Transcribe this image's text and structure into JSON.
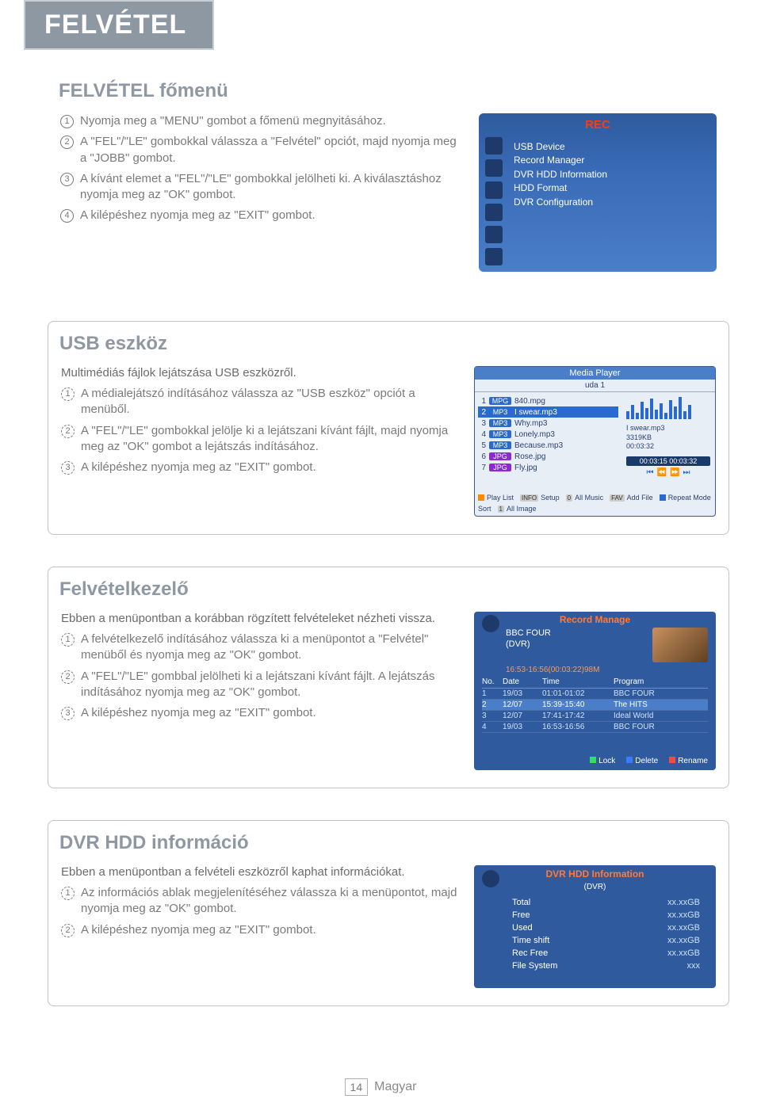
{
  "page_title": "FELVÉTEL",
  "section1": {
    "title": "FELVÉTEL főmenü",
    "steps": [
      "Nyomja meg a \"MENU\" gombot a főmenü megnyitásához.",
      "A \"FEL\"/\"LE\" gombokkal válassza a \"Felvétel\" opciót, majd nyomja meg a \"JOBB\" gombot.",
      "A kívánt elemet a \"FEL\"/\"LE\" gombokkal jelölheti ki. A kiválasztáshoz nyomja meg az \"OK\" gombot.",
      "A kilépéshez nyomja meg az \"EXIT\" gombot."
    ]
  },
  "rec_panel": {
    "title": "REC",
    "title_color": "#ff3a0c",
    "bg_gradient_top": "#2f5b9e",
    "bg_gradient_bottom": "#4a7ec8",
    "items": [
      "USB Device",
      "Record Manager",
      "DVR HDD Information",
      "HDD Format",
      "DVR Configuration"
    ]
  },
  "section2": {
    "title": "USB eszköz",
    "intro": "Multimédiás fájlok lejátszása USB eszközről.",
    "steps": [
      "A médialejátszó indításához válassza az \"USB eszköz\" opciót a menüből.",
      "A \"FEL\"/\"LE\" gombokkal jelölje ki a lejátszani kívánt fájlt, majd nyomja meg az \"OK\" gombot a lejátszás indításához.",
      "A kilépéshez nyomja meg az \"EXIT\" gombot."
    ]
  },
  "media_player": {
    "title": "Media Player",
    "subtitle": "uda 1",
    "eq_heights": [
      10,
      18,
      8,
      22,
      14,
      26,
      12,
      20,
      8,
      24,
      16,
      28,
      10,
      18
    ],
    "eq_color": "#2a6ad0",
    "files": [
      {
        "idx": "1",
        "type": "MPG",
        "name": "840.mpg"
      },
      {
        "idx": "2",
        "type": "MP3",
        "name": "I swear.mp3",
        "selected": true
      },
      {
        "idx": "3",
        "type": "MP3",
        "name": "Why.mp3"
      },
      {
        "idx": "4",
        "type": "MP3",
        "name": "Lonely.mp3"
      },
      {
        "idx": "5",
        "type": "MP3",
        "name": "Because.mp3"
      },
      {
        "idx": "6",
        "type": "JPG",
        "name": "Rose.jpg"
      },
      {
        "idx": "7",
        "type": "JPG",
        "name": "Fly.jpg"
      }
    ],
    "now_name": "I swear.mp3",
    "now_size": "3319KB",
    "now_dur": "00:03:32",
    "time": "00:03:15 00:03:32",
    "footer": [
      {
        "color": "#ff8a00",
        "label": "Play List"
      },
      {
        "badge": "INFO",
        "label": "Setup"
      },
      {
        "badge": "0",
        "label": "All Music"
      },
      {
        "badge": "FAV",
        "label": "Add File"
      },
      {
        "color": "#2a6ad0",
        "label": "Repeat Mode"
      },
      {
        "label": "Sort"
      },
      {
        "badge": "1",
        "label": "All Image"
      }
    ]
  },
  "section3": {
    "title": "Felvételkezelő",
    "intro": "Ebben a menüpontban a korábban rögzített felvételeket nézheti vissza.",
    "steps": [
      "A felvételkezelő indításához válassza ki a menüpontot a \"Felvétel\" menüből és nyomja meg az \"OK\" gombot.",
      "A \"FEL\"/\"LE\" gombbal jelölheti ki a lejátszani kívánt fájlt. A lejátszás indításához nyomja meg az \"OK\" gombot.",
      "A kilépéshez nyomja meg az \"EXIT\" gombot."
    ]
  },
  "record_manage": {
    "title": "Record Manage",
    "title_color": "#ff7a3a",
    "channel_name": "BBC FOUR",
    "channel_sub": "(DVR)",
    "time_range": "16:53-16:56(00:03:22)98M",
    "time_color": "#ff9a4a",
    "columns": [
      "No.",
      "Date",
      "Time",
      "Program"
    ],
    "rows": [
      {
        "no": "1",
        "date": "19/03",
        "time": "01:01-01:02",
        "program": "BBC FOUR"
      },
      {
        "no": "2",
        "date": "12/07",
        "time": "15:39-15:40",
        "program": "The HITS",
        "selected": true
      },
      {
        "no": "3",
        "date": "12/07",
        "time": "17:41-17:42",
        "program": "Ideal World"
      },
      {
        "no": "4",
        "date": "19/03",
        "time": "16:53-16:56",
        "program": "BBC FOUR"
      }
    ],
    "footer": [
      {
        "color": "#30e060",
        "label": "Lock"
      },
      {
        "color": "#3a7aff",
        "label": "Delete"
      },
      {
        "color": "#ff4a3a",
        "label": "Rename"
      }
    ]
  },
  "section4": {
    "title": "DVR HDD információ",
    "intro": "Ebben a menüpontban a felvételi eszközről kaphat információkat.",
    "steps": [
      "Az információs ablak megjelenítéséhez válassza ki a menüpontot, majd nyomja meg az \"OK\" gombot.",
      "A kilépéshez nyomja meg az \"EXIT\" gombot."
    ]
  },
  "hdd_info": {
    "title": "DVR HDD Information",
    "subtitle": "(DVR)",
    "rows": [
      {
        "label": "Total",
        "value": "xx.xxGB"
      },
      {
        "label": "Free",
        "value": "xx.xxGB"
      },
      {
        "label": "Used",
        "value": "xx.xxGB"
      },
      {
        "label": "Time shift",
        "value": "xx.xxGB"
      },
      {
        "label": "Rec Free",
        "value": "xx.xxGB"
      },
      {
        "label": "File System",
        "value": "xxx"
      }
    ]
  },
  "footer": {
    "page": "14",
    "lang": "Magyar"
  },
  "colors": {
    "heading": "#8e98a3",
    "body_text": "#7a7a7a",
    "border": "#c0c4c8"
  }
}
